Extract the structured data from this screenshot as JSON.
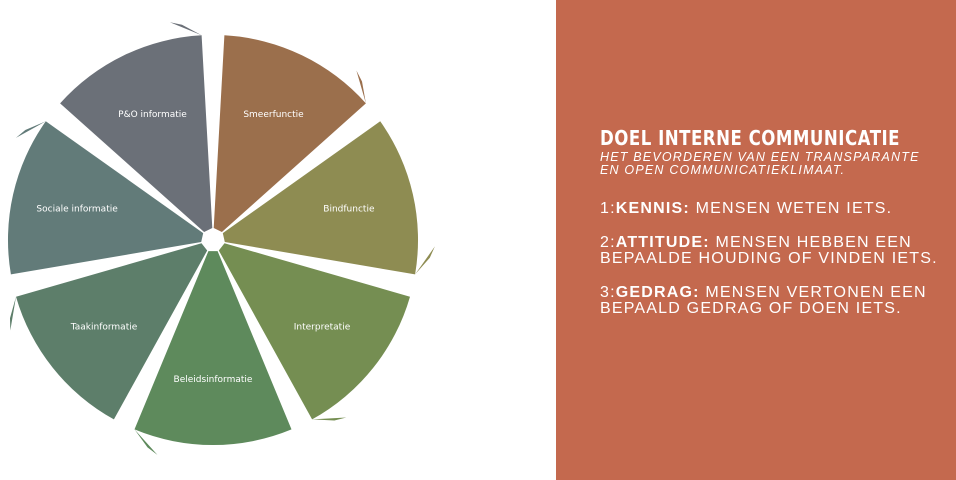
{
  "diagram": {
    "segments": [
      {
        "label": "Smeerfunctie",
        "color": "#9b6f4c",
        "direction": "outward"
      },
      {
        "label": "Bindfunctie",
        "color": "#8e8c52",
        "direction": "outward"
      },
      {
        "label": "Interpretatie",
        "color": "#758e52",
        "direction": "outward"
      },
      {
        "label": "Beleidsinformatie",
        "color": "#5e8a5c",
        "direction": "outward"
      },
      {
        "label": "Taakinformatie",
        "color": "#5d7e6a",
        "direction": "outward"
      },
      {
        "label": "Sociale informatie",
        "color": "#627b79",
        "direction": "outward"
      },
      {
        "label": "P&O informatie",
        "color": "#6b7078",
        "direction": "outward"
      }
    ]
  },
  "panel": {
    "title": "DOEL INTERNE COMMUNICATIE",
    "subtitle_line1": "HET BEVORDEREN VAN EEN TRANSPARANTE",
    "subtitle_line2": "EN OPEN COMMUNICATIEKLIMAAT.",
    "goals": [
      {
        "prefix": "1:",
        "keyword": "KENNIS:",
        "text": " MENSEN WETEN IETS."
      },
      {
        "prefix": "2:",
        "keyword": "ATTITUDE:",
        "text": " MENSEN HEBBEN EEN BEPAALDE HOUDING OF VINDEN IETS."
      },
      {
        "prefix": "3:",
        "keyword": "GEDRAG:",
        "text": " MENSEN VERTONEN EEN BEPAALD GEDRAG OF DOEN IETS."
      }
    ],
    "background_color": "#c4694e"
  }
}
